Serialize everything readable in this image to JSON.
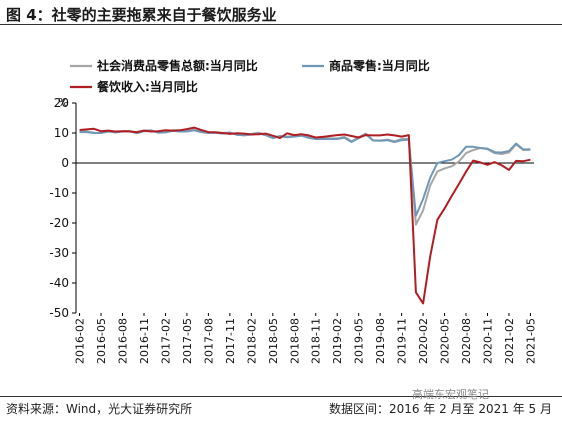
{
  "figure": {
    "title": "图 4：社零的主要拖累来自于餐饮服务业",
    "source": "资料来源：Wind，光大证券研究所",
    "range": "数据区间：2016 年 2 月至 2021 年 5 月",
    "watermark": "高端东宏观笔记"
  },
  "chart_data": {
    "type": "line",
    "yunit": "%",
    "ylim": [
      -50,
      20
    ],
    "yticks": [
      20,
      10,
      0,
      -10,
      -20,
      -30,
      -40,
      -50
    ],
    "xlabels": [
      "2016-02",
      "2016-05",
      "2016-08",
      "2016-11",
      "2017-02",
      "2017-05",
      "2017-08",
      "2017-11",
      "2018-02",
      "2018-05",
      "2018-08",
      "2018-11",
      "2019-02",
      "2019-05",
      "2019-08",
      "2019-11",
      "2020-02",
      "2020-05",
      "2020-08",
      "2020-11",
      "2021-02",
      "2021-05"
    ],
    "x": [
      "2016-02",
      "2016-03",
      "2016-04",
      "2016-05",
      "2016-06",
      "2016-07",
      "2016-08",
      "2016-09",
      "2016-10",
      "2016-11",
      "2016-12",
      "2017-01",
      "2017-02",
      "2017-03",
      "2017-04",
      "2017-05",
      "2017-06",
      "2017-07",
      "2017-08",
      "2017-09",
      "2017-10",
      "2017-11",
      "2017-12",
      "2018-01",
      "2018-02",
      "2018-03",
      "2018-04",
      "2018-05",
      "2018-06",
      "2018-07",
      "2018-08",
      "2018-09",
      "2018-10",
      "2018-11",
      "2018-12",
      "2019-01",
      "2019-02",
      "2019-03",
      "2019-04",
      "2019-05",
      "2019-06",
      "2019-07",
      "2019-08",
      "2019-09",
      "2019-10",
      "2019-11",
      "2019-12",
      "2020-01",
      "2020-02",
      "2020-03",
      "2020-04",
      "2020-05",
      "2020-06",
      "2020-07",
      "2020-08",
      "2020-09",
      "2020-10",
      "2020-11",
      "2020-12",
      "2021-01",
      "2021-02",
      "2021-03",
      "2021-04",
      "2021-05"
    ],
    "legend": [
      {
        "name": "社会消费品零售总额:当月同比",
        "color": "#a6a6a6"
      },
      {
        "name": "商品零售:当月同比",
        "color": "#6f98b8"
      },
      {
        "name": "餐饮收入:当月同比",
        "color": "#b01e23"
      }
    ],
    "series": [
      {
        "name": "社会消费品零售总额:当月同比",
        "color": "#a6a6a6",
        "values": [
          10.5,
          10.5,
          10.1,
          10.0,
          10.6,
          10.2,
          10.6,
          10.7,
          10.0,
          10.8,
          10.9,
          10.2,
          10.3,
          10.9,
          10.7,
          10.7,
          11.0,
          10.4,
          10.1,
          10.3,
          10.0,
          10.2,
          9.4,
          9.4,
          9.7,
          10.1,
          9.4,
          8.5,
          9.0,
          8.8,
          9.0,
          9.2,
          8.6,
          8.1,
          8.2,
          8.2,
          8.2,
          8.7,
          7.2,
          8.6,
          9.8,
          7.6,
          7.5,
          7.8,
          7.2,
          8.0,
          8.0,
          -20.5,
          -15.8,
          -7.5,
          -2.8,
          -1.8,
          -1.1,
          0.5,
          3.3,
          4.3,
          5.0,
          4.6,
          3.3,
          3.0,
          3.5,
          6.2,
          4.3,
          4.4
        ]
      },
      {
        "name": "商品零售:当月同比",
        "color": "#6f98b8",
        "values": [
          10.3,
          10.3,
          10.0,
          10.0,
          10.5,
          10.2,
          10.5,
          10.6,
          9.9,
          10.6,
          10.8,
          10.1,
          10.2,
          10.7,
          10.5,
          10.5,
          10.9,
          10.3,
          10.0,
          10.1,
          9.8,
          10.1,
          9.4,
          9.2,
          9.5,
          9.9,
          9.3,
          8.3,
          8.9,
          8.6,
          8.8,
          9.1,
          8.4,
          8.0,
          8.0,
          8.0,
          8.0,
          8.4,
          7.0,
          8.3,
          9.6,
          7.5,
          7.4,
          7.6,
          7.0,
          7.6,
          7.8,
          -17.6,
          -12.0,
          -4.9,
          0.0,
          0.6,
          1.1,
          2.6,
          5.4,
          5.4,
          5.0,
          4.8,
          3.6,
          3.5,
          4.0,
          6.5,
          4.5,
          4.6
        ]
      },
      {
        "name": "餐饮收入:当月同比",
        "color": "#b01e23",
        "values": [
          11.0,
          11.2,
          11.4,
          10.6,
          10.8,
          10.5,
          10.6,
          10.5,
          10.3,
          10.8,
          10.5,
          10.6,
          10.9,
          10.8,
          10.9,
          11.3,
          11.8,
          11.0,
          10.3,
          10.2,
          10.0,
          9.7,
          9.9,
          9.8,
          9.5,
          9.6,
          9.8,
          9.1,
          8.3,
          9.9,
          9.3,
          9.6,
          9.2,
          8.5,
          8.7,
          9.0,
          9.3,
          9.5,
          9.0,
          8.5,
          9.3,
          9.2,
          9.2,
          9.5,
          9.2,
          8.8,
          9.3,
          -43.1,
          -46.8,
          -31.1,
          -18.9,
          -15.2,
          -11.0,
          -7.0,
          -2.9,
          0.8,
          0.2,
          -0.6,
          0.3,
          -0.8,
          -2.3,
          0.7,
          0.6,
          1.1
        ]
      }
    ],
    "grid": false
  }
}
